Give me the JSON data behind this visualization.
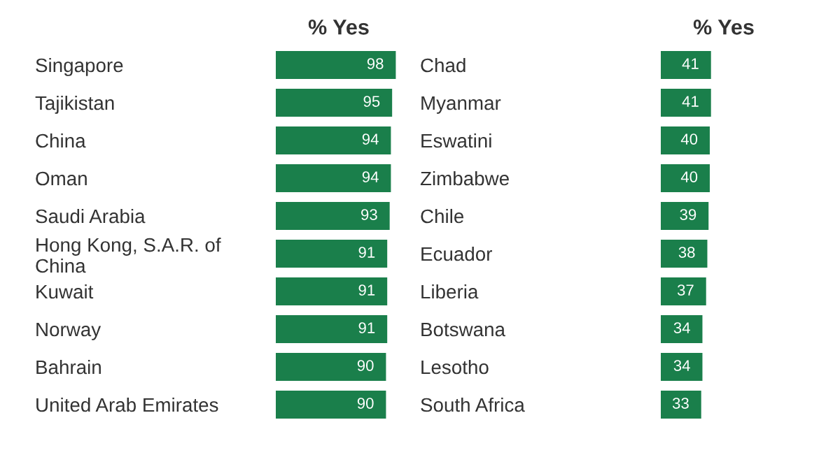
{
  "chart_data": [
    {
      "type": "bar",
      "orientation": "horizontal",
      "xlabel": "% Yes",
      "categories": [
        "Singapore",
        "Tajikistan",
        "China",
        "Oman",
        "Saudi Arabia",
        "Hong Kong, S.A.R. of\nChina",
        "Kuwait",
        "Norway",
        "Bahrain",
        "United Arab Emirates"
      ],
      "values": [
        98,
        95,
        94,
        94,
        93,
        91,
        91,
        91,
        90,
        90
      ],
      "color": "#1a7f4b",
      "data_labels": true,
      "tick_labels": "y"
    },
    {
      "type": "bar",
      "orientation": "horizontal",
      "xlabel": "% Yes",
      "categories": [
        "Chad",
        "Myanmar",
        "Eswatini",
        "Zimbabwe",
        "Chile",
        "Ecuador",
        "Liberia",
        "Botswana",
        "Lesotho",
        "South Africa"
      ],
      "values": [
        41,
        41,
        40,
        40,
        39,
        38,
        37,
        34,
        34,
        33
      ],
      "color": "#1a7f4b",
      "data_labels": true,
      "tick_labels": "y"
    }
  ]
}
